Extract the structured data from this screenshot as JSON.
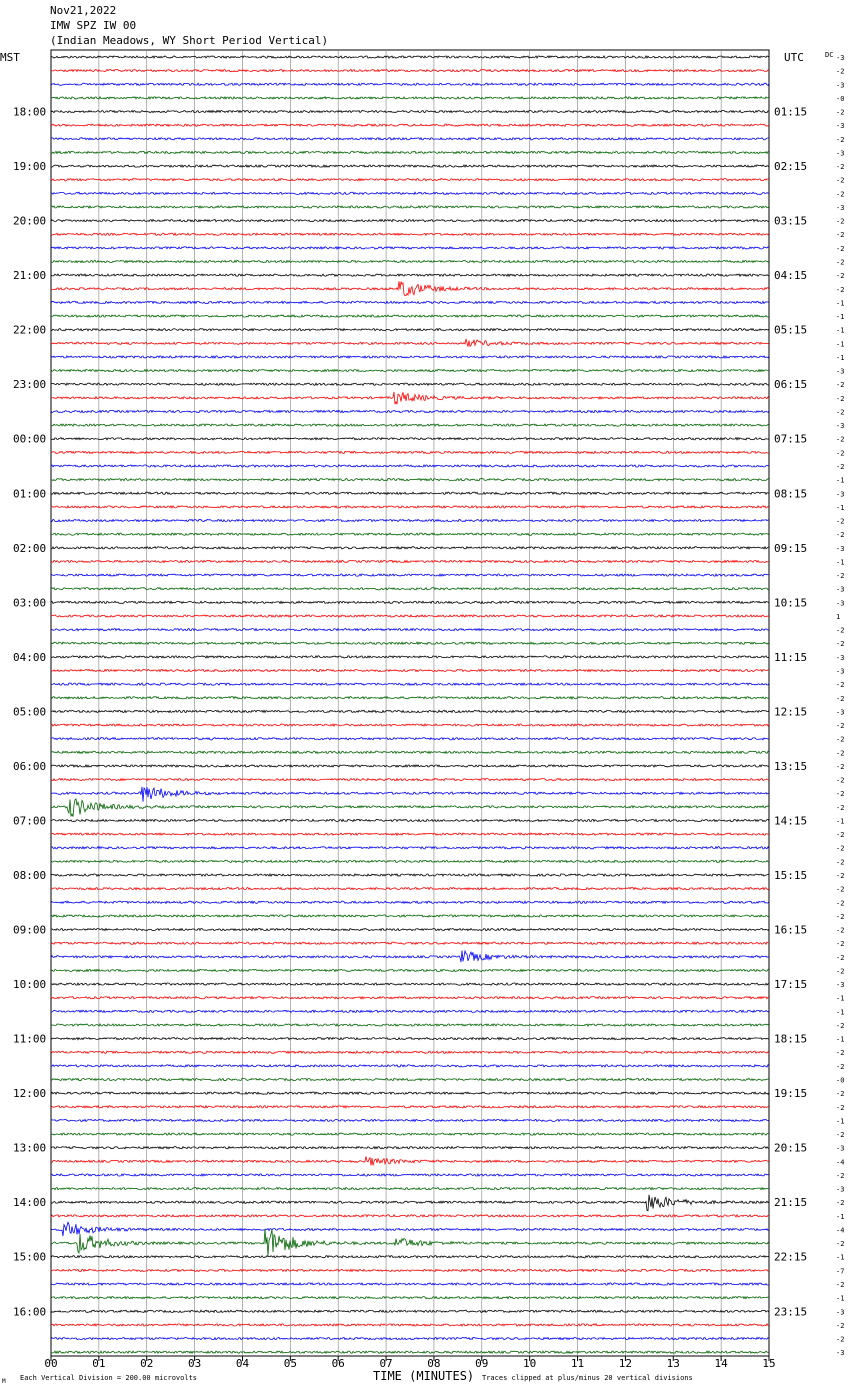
{
  "header": {
    "date": "Nov21,2022",
    "station": "IMW SPZ IW 00",
    "description": "(Indian Meadows, WY Short Period Vertical)"
  },
  "left_axis_label": "MST",
  "right_axis_label": "UTC",
  "dc_label": "DC",
  "footer": {
    "scale_note": "Each Vertical Division =  200.00 microvolts",
    "clip_note": "Traces clipped at plus/minus 20 vertical divisions",
    "corner_mark": "M"
  },
  "colors": {
    "trace_cycle": [
      "#000000",
      "#ff0000",
      "#0000ff",
      "#006400"
    ],
    "grid": "#808080"
  },
  "chart_data": {
    "type": "line",
    "subtype": "helicorder",
    "title": "IMW SPZ IW 00",
    "xlabel": "TIME (MINUTES)",
    "x_ticks": [
      "00",
      "01",
      "02",
      "03",
      "04",
      "05",
      "06",
      "07",
      "08",
      "09",
      "10",
      "11",
      "12",
      "13",
      "14",
      "15"
    ],
    "xlim": [
      0,
      15
    ],
    "row_count": 96,
    "row_minutes": 15,
    "left_hour_labels": [
      "18:00",
      "19:00",
      "20:00",
      "21:00",
      "22:00",
      "23:00",
      "00:00",
      "01:00",
      "02:00",
      "03:00",
      "04:00",
      "05:00",
      "06:00",
      "07:00",
      "08:00",
      "09:00",
      "10:00",
      "11:00",
      "12:00",
      "13:00",
      "14:00",
      "15:00",
      "16:00"
    ],
    "right_hour_labels": [
      "01:15",
      "02:15",
      "03:15",
      "04:15",
      "05:15",
      "06:15",
      "07:15",
      "08:15",
      "09:15",
      "10:15",
      "11:15",
      "12:15",
      "13:15",
      "14:15",
      "15:15",
      "16:15",
      "17:15",
      "18:15",
      "19:15",
      "20:15",
      "21:15",
      "22:15",
      "23:15"
    ],
    "dc_offsets": [
      "-3",
      "-2",
      "-3",
      "-0",
      "-2",
      "-3",
      "-2",
      "-3",
      "-2",
      "-2",
      "-2",
      "-3",
      "-2",
      "-2",
      "-2",
      "-2",
      "-2",
      "-2",
      "-1",
      "-1",
      "-1",
      "-1",
      "-1",
      "-3",
      "-2",
      "-2",
      "-2",
      "-3",
      "-2",
      "-2",
      "-2",
      "-1",
      "-3",
      "-1",
      "-2",
      "-2",
      "-3",
      "-1",
      "-2",
      "-3",
      "-3",
      "1",
      "-2",
      "-2",
      "-3",
      "-3",
      "-2",
      "-2",
      "-3",
      "-2",
      "-2",
      "-2",
      "-2",
      "-2",
      "-2",
      "-2",
      "-1",
      "-2",
      "-2",
      "-2",
      "-2",
      "-2",
      "-2",
      "-2",
      "-2",
      "-2",
      "-2",
      "-2",
      "-3",
      "-1",
      "-1",
      "-2",
      "-1",
      "-2",
      "-2",
      "-0",
      "-2",
      "-2",
      "-1",
      "-2",
      "-3",
      "-4",
      "-2",
      "-3",
      "-2",
      "-1",
      "-4",
      "-2",
      "-1",
      "-7",
      "-2",
      "-1",
      "-3",
      "-2",
      "-2",
      "-3"
    ],
    "events": [
      {
        "row": 17,
        "minute": 7.3,
        "amplitude": 1.3
      },
      {
        "row": 21,
        "minute": 8.7,
        "amplitude": 0.5
      },
      {
        "row": 25,
        "minute": 7.2,
        "amplitude": 0.9
      },
      {
        "row": 54,
        "minute": 1.9,
        "amplitude": 1.3
      },
      {
        "row": 55,
        "minute": 0.4,
        "amplitude": 1.5
      },
      {
        "row": 66,
        "minute": 8.6,
        "amplitude": 0.8
      },
      {
        "row": 81,
        "minute": 6.6,
        "amplitude": 0.6
      },
      {
        "row": 84,
        "minute": 12.5,
        "amplitude": 1.2
      },
      {
        "row": 86,
        "minute": 0.3,
        "amplitude": 1.1
      },
      {
        "row": 87,
        "minute": 0.6,
        "amplitude": 1.5
      },
      {
        "row": 87,
        "minute": 4.5,
        "amplitude": 2.5
      },
      {
        "row": 87,
        "minute": 7.2,
        "amplitude": 0.8
      }
    ]
  }
}
